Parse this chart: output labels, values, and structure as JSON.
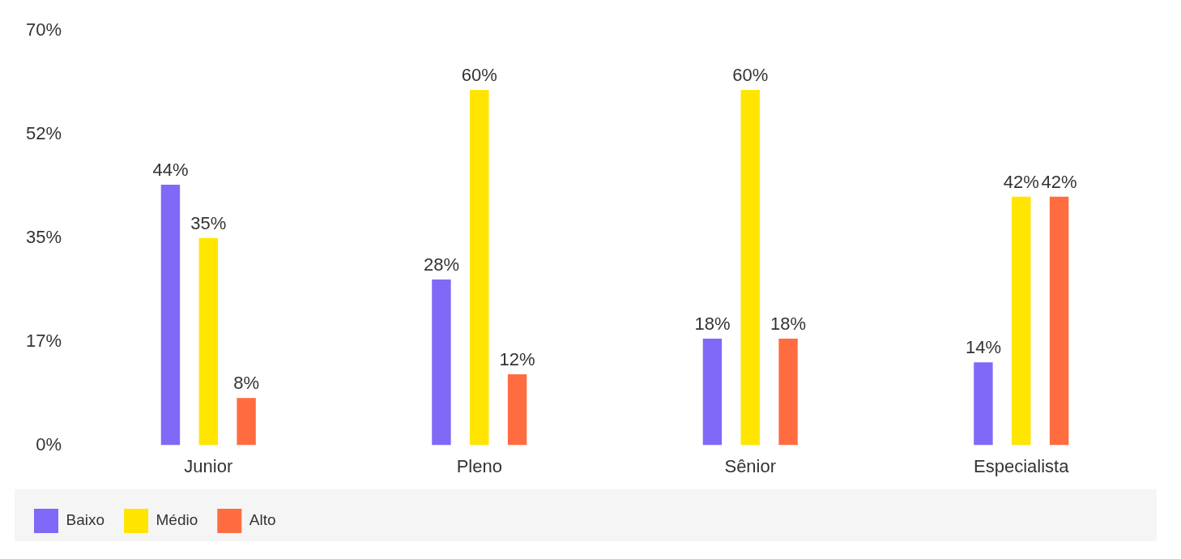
{
  "chart_data": {
    "type": "bar",
    "categories": [
      "Junior",
      "Pleno",
      "Sênior",
      "Especialista"
    ],
    "series": [
      {
        "name": "Baixo",
        "color": "#8069f7",
        "values": [
          44,
          28,
          18,
          14
        ],
        "value_labels": [
          "44%",
          "28%",
          "18%",
          "14%"
        ]
      },
      {
        "name": "Médio",
        "color": "#ffe500",
        "values": [
          35,
          60,
          60,
          42
        ],
        "value_labels": [
          "35%",
          "60%",
          "60%",
          "42%"
        ]
      },
      {
        "name": "Alto",
        "color": "#ff6c40",
        "values": [
          8,
          12,
          18,
          42
        ],
        "value_labels": [
          "8%",
          "12%",
          "18%",
          "42%"
        ]
      }
    ],
    "ylim": [
      0,
      70
    ],
    "yticks": [
      {
        "value": 0,
        "label": "0%"
      },
      {
        "value": 17.5,
        "label": "17%"
      },
      {
        "value": 35,
        "label": "35%"
      },
      {
        "value": 52.5,
        "label": "52%"
      },
      {
        "value": 70,
        "label": "70%"
      }
    ],
    "grid": false,
    "legend": "bottom left"
  }
}
